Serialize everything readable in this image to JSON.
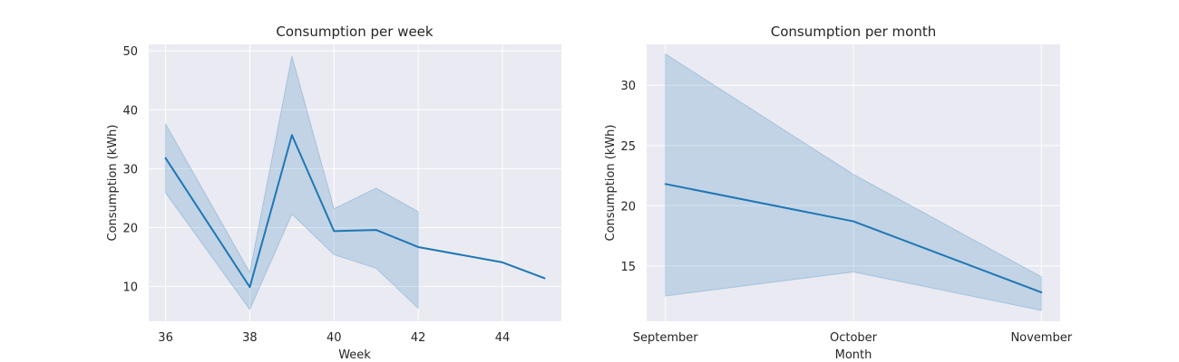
{
  "colors": {
    "plot_background": "#eaeaf2",
    "grid": "#ffffff",
    "line": "#1f77b4",
    "band": "#1f77b4"
  },
  "chart_data": [
    {
      "type": "line",
      "title": "Consumption per week",
      "xlabel": "Week",
      "ylabel": "Consumption (kWh)",
      "x_ticks": [
        36,
        38,
        40,
        42,
        44
      ],
      "y_ticks": [
        10,
        20,
        30,
        40,
        50
      ],
      "x_tick_labels": [
        "36",
        "38",
        "40",
        "42",
        "44"
      ],
      "y_tick_labels": [
        "10",
        "20",
        "30",
        "40",
        "50"
      ],
      "xlim": [
        35.6,
        45.4
      ],
      "ylim": [
        4.1,
        51.1
      ],
      "grid": true,
      "series": [
        {
          "x": [
            36,
            38,
            39,
            40,
            41,
            42,
            44,
            45
          ],
          "y": [
            31.8,
            9.9,
            35.7,
            19.4,
            19.6,
            16.7,
            14.1,
            11.4
          ],
          "ci_lower": [
            25.9,
            6.1,
            22.3,
            15.4,
            13.1,
            6.3,
            null,
            null
          ],
          "ci_upper": [
            37.6,
            12.4,
            49.1,
            23.2,
            26.7,
            22.7,
            null,
            null
          ]
        }
      ]
    },
    {
      "type": "line",
      "title": "Consumption per month",
      "xlabel": "Month",
      "ylabel": "Consumption (kWh)",
      "categories": [
        "September",
        "October",
        "November"
      ],
      "y_ticks": [
        15,
        20,
        25,
        30
      ],
      "y_tick_labels": [
        "15",
        "20",
        "25",
        "30"
      ],
      "xlim": [
        -0.1,
        2.1
      ],
      "ylim": [
        10.4,
        33.4
      ],
      "grid": true,
      "series": [
        {
          "y": [
            21.8,
            18.7,
            12.8
          ],
          "ci_lower": [
            12.5,
            14.5,
            11.3
          ],
          "ci_upper": [
            32.6,
            22.6,
            14.1
          ]
        }
      ]
    }
  ]
}
